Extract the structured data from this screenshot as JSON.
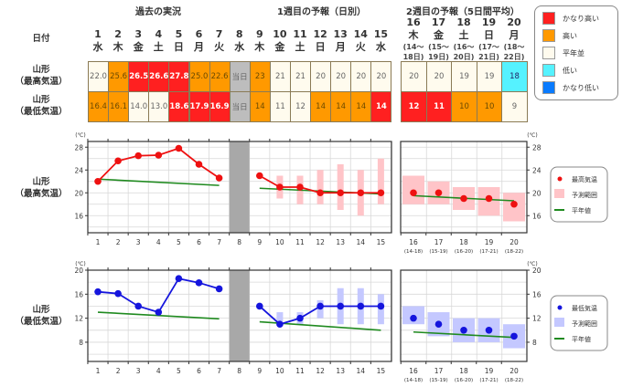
{
  "headers": {
    "past": "過去の実況",
    "week1": "1週目の予報（日別）",
    "week2": "2週目の予報（5日間平均）",
    "date_label": "日付"
  },
  "days": [
    {
      "d": "1",
      "w": "水"
    },
    {
      "d": "2",
      "w": "木"
    },
    {
      "d": "3",
      "w": "金"
    },
    {
      "d": "4",
      "w": "土"
    },
    {
      "d": "5",
      "w": "日"
    },
    {
      "d": "6",
      "w": "月"
    },
    {
      "d": "7",
      "w": "火"
    },
    {
      "d": "8",
      "w": "水"
    },
    {
      "d": "9",
      "w": "木"
    },
    {
      "d": "10",
      "w": "金"
    },
    {
      "d": "11",
      "w": "土"
    },
    {
      "d": "12",
      "w": "日"
    },
    {
      "d": "13",
      "w": "月"
    },
    {
      "d": "14",
      "w": "火"
    },
    {
      "d": "15",
      "w": "水"
    }
  ],
  "week2_days": [
    {
      "d": "16",
      "w": "木",
      "r1": "(14～",
      "r2": "18日)"
    },
    {
      "d": "17",
      "w": "金",
      "r1": "(15～",
      "r2": "19日)"
    },
    {
      "d": "18",
      "w": "土",
      "r1": "(16～",
      "r2": "20日)"
    },
    {
      "d": "19",
      "w": "日",
      "r1": "(17～",
      "r2": "21日)"
    },
    {
      "d": "20",
      "w": "月",
      "r1": "(18～",
      "r2": "22日)"
    }
  ],
  "rows": {
    "max_label1": "山形",
    "max_label2": "（最高気温）",
    "min_label1": "山形",
    "min_label2": "（最低気温）"
  },
  "table": {
    "max": [
      {
        "v": "22.0",
        "c": "normal"
      },
      {
        "v": "25.6",
        "c": "high"
      },
      {
        "v": "26.5",
        "c": "vhigh"
      },
      {
        "v": "26.6",
        "c": "vhigh"
      },
      {
        "v": "27.8",
        "c": "vhigh"
      },
      {
        "v": "25.0",
        "c": "high"
      },
      {
        "v": "22.6",
        "c": "high"
      },
      {
        "v": "当日",
        "c": "today"
      },
      {
        "v": "23",
        "c": "high"
      },
      {
        "v": "21",
        "c": "normal"
      },
      {
        "v": "21",
        "c": "normal"
      },
      {
        "v": "20",
        "c": "normal"
      },
      {
        "v": "20",
        "c": "normal"
      },
      {
        "v": "20",
        "c": "normal"
      },
      {
        "v": "20",
        "c": "normal"
      }
    ],
    "max_w2": [
      {
        "v": "20",
        "c": "normal"
      },
      {
        "v": "20",
        "c": "normal"
      },
      {
        "v": "19",
        "c": "normal"
      },
      {
        "v": "19",
        "c": "normal"
      },
      {
        "v": "18",
        "c": "low"
      }
    ],
    "min": [
      {
        "v": "16.4",
        "c": "high"
      },
      {
        "v": "16.1",
        "c": "high"
      },
      {
        "v": "14.0",
        "c": "normal"
      },
      {
        "v": "13.0",
        "c": "normal"
      },
      {
        "v": "18.6",
        "c": "vhigh"
      },
      {
        "v": "17.9",
        "c": "vhigh"
      },
      {
        "v": "16.9",
        "c": "vhigh"
      },
      {
        "v": "当日",
        "c": "today"
      },
      {
        "v": "14",
        "c": "high"
      },
      {
        "v": "11",
        "c": "normal"
      },
      {
        "v": "12",
        "c": "normal"
      },
      {
        "v": "14",
        "c": "high"
      },
      {
        "v": "14",
        "c": "high"
      },
      {
        "v": "14",
        "c": "high"
      },
      {
        "v": "14",
        "c": "vhigh"
      }
    ],
    "min_w2": [
      {
        "v": "12",
        "c": "vhigh"
      },
      {
        "v": "11",
        "c": "vhigh"
      },
      {
        "v": "10",
        "c": "high"
      },
      {
        "v": "10",
        "c": "high"
      },
      {
        "v": "9",
        "c": "normal"
      }
    ]
  },
  "category_legend": {
    "items": [
      {
        "label": "かなり高い",
        "color": "#ff2020"
      },
      {
        "label": "高い",
        "color": "#ff9900"
      },
      {
        "label": "平年並",
        "color": "#fffbee"
      },
      {
        "label": "低い",
        "color": "#55f2ff"
      },
      {
        "label": "かなり低い",
        "color": "#0a7bff"
      }
    ]
  },
  "colors": {
    "max_series": "#ee1111",
    "max_range": "#ffc4c8",
    "min_series": "#1515dd",
    "min_range": "#c4c8ff",
    "normal_line": "#1f8a1f",
    "today_band": "#a8a8a8"
  },
  "chart_data": [
    {
      "type": "line",
      "title": "山形（最高気温）",
      "unit": "(℃)",
      "ylim": [
        13,
        29
      ],
      "yticks": [
        16,
        20,
        24,
        28
      ],
      "grid": true,
      "x_daily": [
        "1",
        "2",
        "3",
        "4",
        "5",
        "6",
        "7",
        "8",
        "9",
        "10",
        "11",
        "12",
        "13",
        "14",
        "15"
      ],
      "observed": {
        "x": [
          1,
          2,
          3,
          4,
          5,
          6,
          7
        ],
        "y": [
          22.0,
          25.6,
          26.5,
          26.6,
          27.8,
          25.0,
          22.6
        ]
      },
      "forecast_daily": {
        "x": [
          9,
          10,
          11,
          12,
          13,
          14,
          15
        ],
        "y": [
          23,
          21,
          21,
          20,
          20,
          20,
          20
        ]
      },
      "forecast_range_daily": [
        {
          "x": 10,
          "low": 19,
          "high": 23
        },
        {
          "x": 11,
          "low": 18,
          "high": 23
        },
        {
          "x": 12,
          "low": 18,
          "high": 24
        },
        {
          "x": 13,
          "low": 17,
          "high": 25
        },
        {
          "x": 14,
          "low": 16,
          "high": 24
        },
        {
          "x": 15,
          "low": 18,
          "high": 26
        }
      ],
      "normal_daily": {
        "x": [
          1,
          7,
          9,
          15
        ],
        "y": [
          22.4,
          21.3,
          20.8,
          19.8
        ]
      },
      "x_week2": [
        "16",
        "17",
        "18",
        "19",
        "20"
      ],
      "x_week2_sub": [
        "(14-18)",
        "(15-19)",
        "(16-20)",
        "(17-21)",
        "(18-22)"
      ],
      "forecast_week2": [
        20,
        20,
        19,
        19,
        18
      ],
      "forecast_range_week2": [
        {
          "low": 18,
          "high": 23
        },
        {
          "low": 18,
          "high": 22
        },
        {
          "low": 17,
          "high": 21
        },
        {
          "low": 16,
          "high": 21
        },
        {
          "low": 15,
          "high": 20
        }
      ],
      "normal_week2": [
        19.5,
        18.6
      ],
      "legend": {
        "series": "最高気温",
        "range": "予測範囲",
        "normal": "平年値",
        "position": "right"
      }
    },
    {
      "type": "line",
      "title": "山形（最低気温）",
      "unit": "(℃)",
      "ylim": [
        4.8,
        20
      ],
      "yticks": [
        8,
        12,
        16,
        20
      ],
      "grid": true,
      "x_daily": [
        "1",
        "2",
        "3",
        "4",
        "5",
        "6",
        "7",
        "8",
        "9",
        "10",
        "11",
        "12",
        "13",
        "14",
        "15"
      ],
      "observed": {
        "x": [
          1,
          2,
          3,
          4,
          5,
          6,
          7
        ],
        "y": [
          16.4,
          16.1,
          14.0,
          13.0,
          18.6,
          17.9,
          16.9
        ]
      },
      "forecast_daily": {
        "x": [
          9,
          10,
          11,
          12,
          13,
          14,
          15
        ],
        "y": [
          14,
          11,
          12,
          14,
          14,
          14,
          14
        ]
      },
      "forecast_range_daily": [
        {
          "x": 10,
          "low": 11,
          "high": 13
        },
        {
          "x": 11,
          "low": 11,
          "high": 13
        },
        {
          "x": 12,
          "low": 12,
          "high": 15
        },
        {
          "x": 13,
          "low": 11,
          "high": 17
        },
        {
          "x": 14,
          "low": 11,
          "high": 17
        },
        {
          "x": 15,
          "low": 11,
          "high": 16
        }
      ],
      "normal_daily": {
        "x": [
          1,
          7,
          9,
          15
        ],
        "y": [
          13.0,
          11.9,
          11.4,
          10.0
        ]
      },
      "x_week2": [
        "16",
        "17",
        "18",
        "19",
        "20"
      ],
      "x_week2_sub": [
        "(14-18)",
        "(15-19)",
        "(16-20)",
        "(17-21)",
        "(18-22)"
      ],
      "forecast_week2": [
        12,
        11,
        10,
        10,
        9
      ],
      "forecast_range_week2": [
        {
          "low": 11,
          "high": 14
        },
        {
          "low": 9,
          "high": 13
        },
        {
          "low": 8,
          "high": 12
        },
        {
          "low": 8,
          "high": 12
        },
        {
          "low": 7,
          "high": 11
        }
      ],
      "normal_week2": [
        9.7,
        8.8
      ],
      "legend": {
        "series": "最低気温",
        "range": "予測範囲",
        "normal": "平年値",
        "position": "right"
      }
    }
  ]
}
